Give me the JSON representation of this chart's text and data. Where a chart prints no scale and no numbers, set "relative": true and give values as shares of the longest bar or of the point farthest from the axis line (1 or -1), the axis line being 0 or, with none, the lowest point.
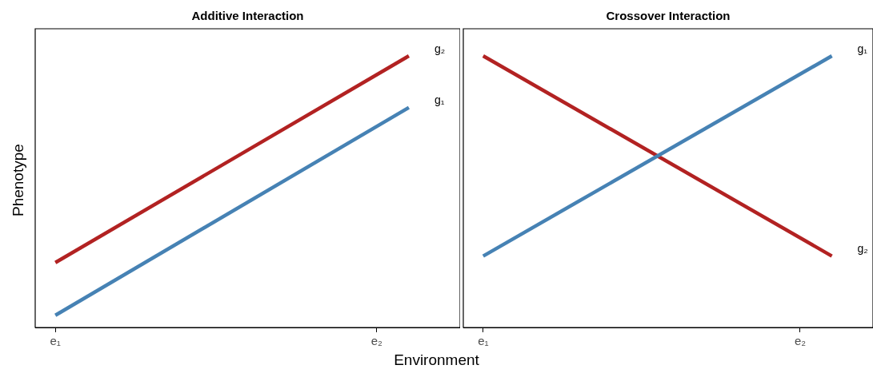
{
  "chart_data": [
    {
      "type": "line",
      "title": "Additive Interaction",
      "xlabel": "Environment",
      "ylabel": "Phenotype",
      "relative": true,
      "grid": false,
      "legend": false,
      "marker": "none",
      "line_style": "solid",
      "categories": [
        "e₁",
        null,
        null,
        null,
        null,
        null,
        null,
        null,
        null,
        null,
        "e₂",
        null
      ],
      "series": [
        {
          "name": "g₂",
          "color": "#b22222",
          "values": [
            0.239,
            null,
            null,
            null,
            null,
            null,
            null,
            null,
            null,
            null,
            null,
            1
          ]
        },
        {
          "name": "g₁",
          "color": "#4682b4",
          "values": [
            0.045,
            null,
            null,
            null,
            null,
            null,
            null,
            null,
            null,
            null,
            null,
            0.81
          ]
        }
      ]
    },
    {
      "type": "line",
      "title": "Crossover Interaction",
      "relative": true,
      "grid": false,
      "legend": false,
      "marker": "none",
      "line_style": "solid",
      "categories": [
        "e₁",
        null,
        null,
        null,
        null,
        null,
        null,
        null,
        null,
        null,
        "e₂",
        null
      ],
      "series": [
        {
          "name": "g₁",
          "color": "#4682b4",
          "values": [
            0.263,
            null,
            null,
            null,
            null,
            null,
            null,
            null,
            null,
            null,
            null,
            1
          ]
        },
        {
          "name": "g₂",
          "color": "#b22222",
          "values": [
            1,
            null,
            null,
            null,
            null,
            null,
            null,
            null,
            null,
            null,
            null,
            0.263
          ]
        }
      ]
    }
  ]
}
